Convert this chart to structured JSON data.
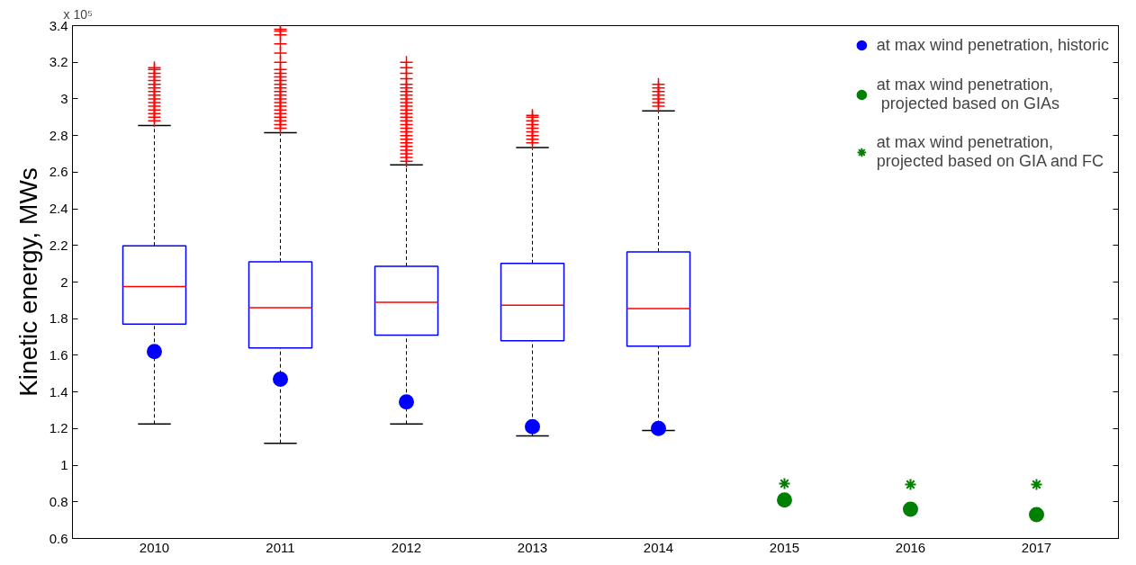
{
  "chart_data": {
    "type": "box",
    "ylabel": "Kinetic energy, MWs",
    "annotations": [
      "x 10⁵"
    ],
    "categories": [
      "2010",
      "2011",
      "2012",
      "2013",
      "2014",
      "2015",
      "2016",
      "2017"
    ],
    "boxes": [
      {
        "low": 1.225,
        "q1": 1.77,
        "median": 1.975,
        "q3": 2.198,
        "high": 2.855,
        "outliers": [
          2.88,
          2.9,
          2.92,
          2.94,
          2.96,
          2.98,
          3.0,
          3.02,
          3.04,
          3.06,
          3.08,
          3.1,
          3.12,
          3.14,
          3.16,
          3.17
        ]
      },
      {
        "low": 1.12,
        "q1": 1.64,
        "median": 1.86,
        "q3": 2.11,
        "high": 2.815,
        "outliers": [
          2.84,
          2.86,
          2.88,
          2.9,
          2.92,
          2.94,
          2.96,
          2.98,
          3.0,
          3.02,
          3.04,
          3.06,
          3.08,
          3.1,
          3.12,
          3.14,
          3.16,
          3.2,
          3.25,
          3.3,
          3.35,
          3.37,
          3.38
        ]
      },
      {
        "low": 1.225,
        "q1": 1.71,
        "median": 1.89,
        "q3": 2.086,
        "high": 2.64,
        "outliers": [
          2.66,
          2.68,
          2.7,
          2.72,
          2.74,
          2.76,
          2.78,
          2.8,
          2.82,
          2.84,
          2.86,
          2.88,
          2.9,
          2.92,
          2.94,
          2.96,
          2.98,
          3.0,
          3.02,
          3.04,
          3.06,
          3.08,
          3.11,
          3.14,
          3.17,
          3.2
        ]
      },
      {
        "low": 1.16,
        "q1": 1.68,
        "median": 1.873,
        "q3": 2.102,
        "high": 2.735,
        "outliers": [
          2.76,
          2.78,
          2.8,
          2.82,
          2.84,
          2.86,
          2.88,
          2.9,
          2.91
        ]
      },
      {
        "low": 1.19,
        "q1": 1.65,
        "median": 1.855,
        "q3": 2.165,
        "high": 2.935,
        "outliers": [
          2.96,
          2.98,
          3.0,
          3.02,
          3.04,
          3.06,
          3.08
        ]
      },
      null,
      null,
      null
    ],
    "series": [
      {
        "name": "at max wind penetration, historic",
        "type": "scatter",
        "marker": "circle",
        "color": "#0000ff",
        "values": [
          1.62,
          1.47,
          1.345,
          1.21,
          1.2,
          null,
          null,
          null
        ]
      },
      {
        "name": "at max wind penetration,\n projected based on GIAs",
        "type": "scatter",
        "marker": "circle",
        "color": "#008000",
        "values": [
          null,
          null,
          null,
          null,
          null,
          0.81,
          0.76,
          0.73
        ]
      },
      {
        "name": "at max wind penetration,\nprojected based on GIA and FC",
        "type": "scatter",
        "marker": "cross",
        "color": "#008000",
        "values": [
          null,
          null,
          null,
          null,
          null,
          0.9,
          0.895,
          0.895
        ]
      }
    ],
    "ylim": [
      0.6,
      3.4
    ],
    "yticks": [
      0.6,
      0.8,
      1,
      1.2,
      1.4,
      1.6,
      1.8,
      2,
      2.2,
      2.4,
      2.6,
      2.8,
      3,
      3.2,
      3.4
    ],
    "grid": false,
    "legend": "top right"
  }
}
